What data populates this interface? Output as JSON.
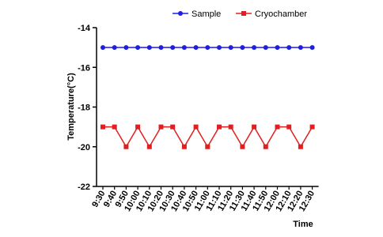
{
  "chart_data": {
    "type": "line",
    "x_label": "Time",
    "y_label": "Temperature(°C)",
    "categories": [
      "9:30",
      "9:40",
      "9:50",
      "10:00",
      "10:10",
      "10:20",
      "10:30",
      "10:40",
      "10:50",
      "11:00",
      "11:10",
      "11:20",
      "11:30",
      "11:40",
      "11:50",
      "12:00",
      "12:10",
      "12:20",
      "12:30"
    ],
    "series": [
      {
        "name": "Sample",
        "color": "#1f1fe0",
        "marker": "circle",
        "values": [
          -15,
          -15,
          -15,
          -15,
          -15,
          -15,
          -15,
          -15,
          -15,
          -15,
          -15,
          -15,
          -15,
          -15,
          -15,
          -15,
          -15,
          -15,
          -15
        ]
      },
      {
        "name": "Cryochamber",
        "color": "#e02020",
        "marker": "square",
        "values": [
          -19,
          -19,
          -20,
          -19,
          -20,
          -19,
          -19,
          -20,
          -19,
          -20,
          -19,
          -19,
          -20,
          -19,
          -20,
          -19,
          -19,
          -20,
          -19
        ]
      }
    ],
    "ylim": [
      -22,
      -14
    ],
    "yticks": [
      -22,
      -20,
      -18,
      -16,
      -14
    ],
    "grid": false,
    "legend": "top"
  }
}
